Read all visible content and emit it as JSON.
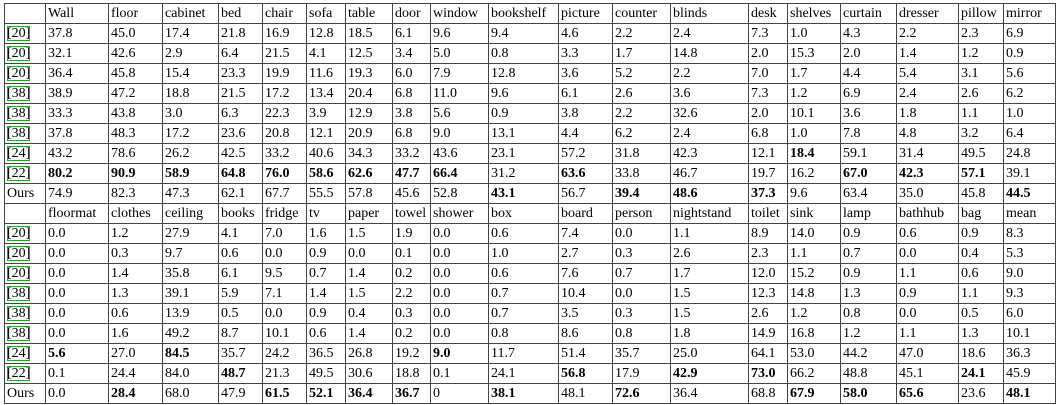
{
  "blocks": [
    {
      "header": [
        "",
        "Wall",
        "floor",
        "cabinet",
        "bed",
        "chair",
        "sofa",
        "table",
        "door",
        "window",
        "bookshelf",
        "picture",
        "counter",
        "blinds",
        "desk",
        "shelves",
        "curtain",
        "dresser",
        "pillow",
        "mirror"
      ],
      "rows": [
        [
          "[20]",
          "37.8",
          "45.0",
          "17.4",
          "21.8",
          "16.9",
          "12.8",
          "18.5",
          "6.1",
          "9.6",
          "9.4",
          "4.6",
          "2.2",
          "2.4",
          "7.3",
          "1.0",
          "4.3",
          "2.2",
          "2.3",
          "6.9"
        ],
        [
          "[20]",
          "32.1",
          "42.6",
          "2.9",
          "6.4",
          "21.5",
          "4.1",
          "12.5",
          "3.4",
          "5.0",
          "0.8",
          "3.3",
          "1.7",
          "14.8",
          "2.0",
          "15.3",
          "2.0",
          "1.4",
          "1.2",
          "0.9"
        ],
        [
          "[20]",
          "36.4",
          "45.8",
          "15.4",
          "23.3",
          "19.9",
          "11.6",
          "19.3",
          "6.0",
          "7.9",
          "12.8",
          "3.6",
          "5.2",
          "2.2",
          "7.0",
          "1.7",
          "4.4",
          "5.4",
          "3.1",
          "5.6"
        ],
        [
          "[38]",
          "38.9",
          "47.2",
          "18.8",
          "21.5",
          "17.2",
          "13.4",
          "20.4",
          "6.8",
          "11.0",
          "9.6",
          "6.1",
          "2.6",
          "3.6",
          "7.3",
          "1.2",
          "6.9",
          "2.4",
          "2.6",
          "6.2"
        ],
        [
          "[38]",
          "33.3",
          "43.8",
          "3.0",
          "6.3",
          "22.3",
          "3.9",
          "12.9",
          "3.8",
          "5.6",
          "0.9",
          "3.8",
          "2.2",
          "32.6",
          "2.0",
          "10.1",
          "3.6",
          "1.8",
          "1.1",
          "1.0"
        ],
        [
          "[38]",
          "37.8",
          "48.3",
          "17.2",
          "23.6",
          "20.8",
          "12.1",
          "20.9",
          "6.8",
          "9.0",
          "13.1",
          "4.4",
          "6.2",
          "2.4",
          "6.8",
          "1.0",
          "7.8",
          "4.8",
          "3.2",
          "6.4"
        ],
        [
          "[24]",
          "43.2",
          "78.6",
          "26.2",
          "42.5",
          "33.2",
          "40.6",
          "34.3",
          "33.2",
          "43.6",
          "23.1",
          "57.2",
          "31.8",
          "42.3",
          "12.1",
          "18.4",
          "59.1",
          "31.4",
          "49.5",
          "24.8"
        ],
        [
          "[22]",
          "80.2",
          "90.9",
          "58.9",
          "64.8",
          "76.0",
          "58.6",
          "62.6",
          "47.7",
          "66.4",
          "31.2",
          "63.6",
          "33.8",
          "46.7",
          "19.7",
          "16.2",
          "67.0",
          "42.3",
          "57.1",
          "39.1"
        ],
        [
          "Ours",
          "74.9",
          "82.3",
          "47.3",
          "62.1",
          "67.7",
          "55.5",
          "57.8",
          "45.6",
          "52.8",
          "43.1",
          "56.7",
          "39.4",
          "48.6",
          "37.3",
          "9.6",
          "63.4",
          "35.0",
          "45.8",
          "44.5"
        ]
      ],
      "bold": [
        [
          6,
          15
        ],
        [
          7,
          1
        ],
        [
          7,
          2
        ],
        [
          7,
          3
        ],
        [
          7,
          4
        ],
        [
          7,
          5
        ],
        [
          7,
          6
        ],
        [
          7,
          7
        ],
        [
          7,
          8
        ],
        [
          7,
          9
        ],
        [
          7,
          11
        ],
        [
          7,
          16
        ],
        [
          7,
          17
        ],
        [
          7,
          18
        ],
        [
          8,
          10
        ],
        [
          8,
          12
        ],
        [
          8,
          13
        ],
        [
          8,
          14
        ],
        [
          8,
          19
        ]
      ]
    },
    {
      "header": [
        "",
        "floormat",
        "clothes",
        "ceiling",
        "books",
        "fridge",
        "tv",
        "paper",
        "towel",
        "shower",
        "box",
        "board",
        "person",
        "nightstand",
        "toilet",
        "sink",
        "lamp",
        "bathhub",
        "bag",
        "mean"
      ],
      "rows": [
        [
          "[20]",
          "0.0",
          "1.2",
          "27.9",
          "4.1",
          "7.0",
          "1.6",
          "1.5",
          "1.9",
          "0.0",
          "0.6",
          "7.4",
          "0.0",
          "1.1",
          "8.9",
          "14.0",
          "0.9",
          "0.6",
          "0.9",
          "8.3"
        ],
        [
          "[20]",
          "0.0",
          "0.3",
          "9.7",
          "0.6",
          "0.0",
          "0.9",
          "0.0",
          "0.1",
          "0.0",
          "1.0",
          "2.7",
          "0.3",
          "2.6",
          "2.3",
          "1.1",
          "0.7",
          "0.0",
          "0.4",
          "5.3"
        ],
        [
          "[20]",
          "0.0",
          "1.4",
          "35.8",
          "6.1",
          "9.5",
          "0.7",
          "1.4",
          "0.2",
          "0.0",
          "0.6",
          "7.6",
          "0.7",
          "1.7",
          "12.0",
          "15.2",
          "0.9",
          "1.1",
          "0.6",
          "9.0"
        ],
        [
          "[38]",
          "0.0",
          "1.3",
          "39.1",
          "5.9",
          "7.1",
          "1.4",
          "1.5",
          "2.2",
          "0.0",
          "0.7",
          "10.4",
          "0.0",
          "1.5",
          "12.3",
          "14.8",
          "1.3",
          "0.9",
          "1.1",
          "9.3"
        ],
        [
          "[38]",
          "0.0",
          "0.6",
          "13.9",
          "0.5",
          "0.0",
          "0.9",
          "0.4",
          "0.3",
          "0.0",
          "0.7",
          "3.5",
          "0.3",
          "1.5",
          "2.6",
          "1.2",
          "0.8",
          "0.0",
          "0.5",
          "6.0"
        ],
        [
          "[38]",
          "0.0",
          "1.6",
          "49.2",
          "8.7",
          "10.1",
          "0.6",
          "1.4",
          "0.2",
          "0.0",
          "0.8",
          "8.6",
          "0.8",
          "1.8",
          "14.9",
          "16.8",
          "1.2",
          "1.1",
          "1.3",
          "10.1"
        ],
        [
          "[24]",
          "5.6",
          "27.0",
          "84.5",
          "35.7",
          "24.2",
          "36.5",
          "26.8",
          "19.2",
          "9.0",
          "11.7",
          "51.4",
          "35.7",
          "25.0",
          "64.1",
          "53.0",
          "44.2",
          "47.0",
          "18.6",
          "36.3"
        ],
        [
          "[22]",
          "0.1",
          "24.4",
          "84.0",
          "48.7",
          "21.3",
          "49.5",
          "30.6",
          "18.8",
          "0.1",
          "24.1",
          "56.8",
          "17.9",
          "42.9",
          "73.0",
          "66.2",
          "48.8",
          "45.1",
          "24.1",
          "45.9"
        ],
        [
          "Ours",
          "0.0",
          "28.4",
          "68.0",
          "47.9",
          "61.5",
          "52.1",
          "36.4",
          "36.7",
          "0",
          "38.1",
          "48.1",
          "72.6",
          "36.4",
          "68.8",
          "67.9",
          "58.0",
          "65.6",
          "23.6",
          "48.1"
        ]
      ],
      "bold": [
        [
          6,
          1
        ],
        [
          6,
          3
        ],
        [
          6,
          9
        ],
        [
          7,
          4
        ],
        [
          7,
          11
        ],
        [
          7,
          13
        ],
        [
          7,
          14
        ],
        [
          7,
          18
        ],
        [
          8,
          2
        ],
        [
          8,
          5
        ],
        [
          8,
          6
        ],
        [
          8,
          7
        ],
        [
          8,
          8
        ],
        [
          8,
          10
        ],
        [
          8,
          12
        ],
        [
          8,
          15
        ],
        [
          8,
          16
        ],
        [
          8,
          17
        ],
        [
          8,
          19
        ]
      ]
    }
  ]
}
